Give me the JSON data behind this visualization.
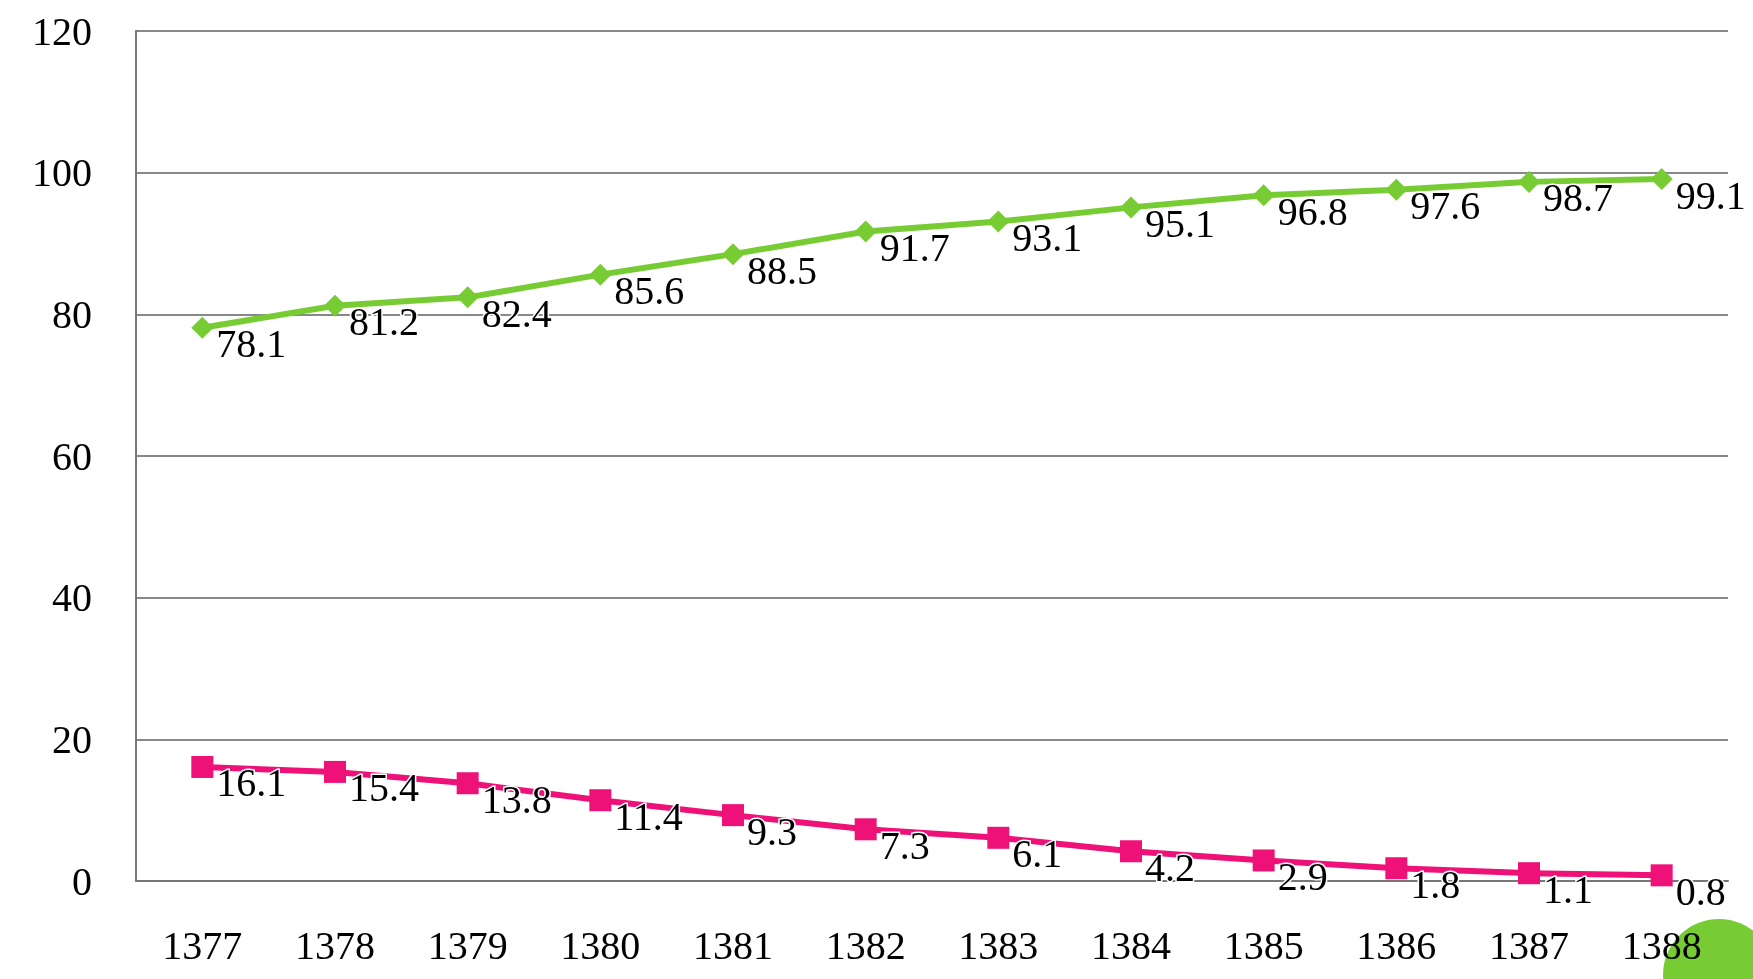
{
  "chart_data": {
    "type": "line",
    "categories": [
      "1377",
      "1378",
      "1379",
      "1380",
      "1381",
      "1382",
      "1383",
      "1384",
      "1385",
      "1386",
      "1387",
      "1388"
    ],
    "series": [
      {
        "color": "#77cc33",
        "marker": "diamond",
        "values": [
          78.1,
          81.2,
          82.4,
          85.6,
          88.5,
          91.7,
          93.1,
          95.1,
          96.8,
          97.6,
          98.7,
          99.1
        ]
      },
      {
        "color": "#ee1177",
        "marker": "square",
        "values": [
          16.1,
          15.4,
          13.8,
          11.4,
          9.3,
          7.3,
          6.1,
          4.2,
          2.9,
          1.8,
          1.1,
          0.8
        ]
      }
    ],
    "ylim": [
      0,
      120
    ],
    "yticks": [
      0,
      20,
      40,
      60,
      80,
      100,
      120
    ],
    "grid": "y",
    "data_labels": true
  }
}
